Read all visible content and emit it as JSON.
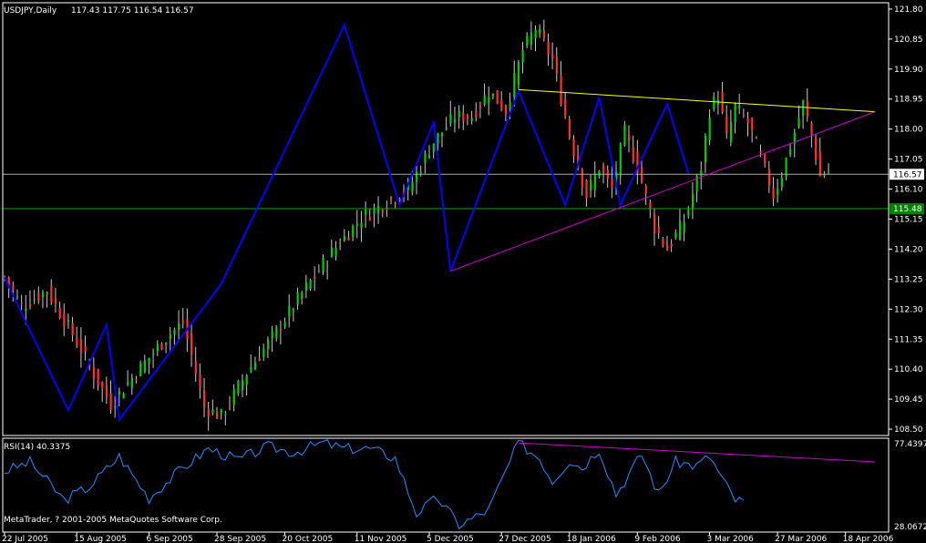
{
  "chart_data": {
    "type": "candlestick",
    "colors": {
      "background": "#000000",
      "frame": "#ffffff",
      "bull": "#00cc00",
      "bear": "#ff3030",
      "zigzag": "#0000ff",
      "trend_upper": "#ffff00",
      "trend_lower": "#cc00cc",
      "rsi_line": "#1e90ff",
      "rsi_trend": "#cc00cc",
      "bid_line": "#aaaaaa",
      "level_line": "#00aa00",
      "level_tag": "#008000"
    },
    "main": {
      "symbol_label": "USDJPY,Daily",
      "ohlc_label": "117.43 117.75 116.54 116.57",
      "ylim": [
        108.3,
        122.0
      ],
      "y_ticks": [
        "121.80",
        "120.85",
        "119.90",
        "118.95",
        "118.00",
        "117.05",
        "116.10",
        "115.15",
        "114.20",
        "113.25",
        "112.30",
        "111.35",
        "110.40",
        "109.45",
        "108.50"
      ],
      "bid_price": 116.57,
      "bid_label": "116.57",
      "level_price": 115.48,
      "level_label": "115.48",
      "copyright": "MetaTrader, ? 2001-2005 MetaQuotes Software Corp.",
      "bars": 195,
      "anchors": [
        [
          0,
          113.3
        ],
        [
          4,
          112.4
        ],
        [
          10,
          112.9
        ],
        [
          16,
          111.5
        ],
        [
          22,
          110.0
        ],
        [
          25,
          109.3
        ],
        [
          31,
          110.3
        ],
        [
          38,
          111.4
        ],
        [
          42,
          111.9
        ],
        [
          47,
          109.2
        ],
        [
          51,
          108.9
        ],
        [
          57,
          110.3
        ],
        [
          63,
          111.4
        ],
        [
          70,
          112.8
        ],
        [
          77,
          114.1
        ],
        [
          84,
          115.2
        ],
        [
          89,
          115.6
        ],
        [
          95,
          116.1
        ],
        [
          101,
          117.6
        ],
        [
          106,
          118.4
        ],
        [
          110,
          118.4
        ],
        [
          114,
          119.2
        ],
        [
          118,
          118.6
        ],
        [
          122,
          120.5
        ],
        [
          125,
          121.2
        ],
        [
          129,
          120.2
        ],
        [
          133,
          117.8
        ],
        [
          137,
          115.9
        ],
        [
          140,
          116.8
        ],
        [
          143,
          116.1
        ],
        [
          146,
          117.9
        ],
        [
          149,
          116.8
        ],
        [
          153,
          114.9
        ],
        [
          156,
          114.2
        ],
        [
          160,
          115.1
        ],
        [
          164,
          116.8
        ],
        [
          166,
          118.6
        ],
        [
          168,
          119.1
        ],
        [
          170,
          117.7
        ],
        [
          172,
          118.7
        ],
        [
          175,
          118.2
        ],
        [
          178,
          117.1
        ],
        [
          181,
          115.9
        ],
        [
          183,
          116.6
        ],
        [
          186,
          117.9
        ],
        [
          188,
          118.8
        ],
        [
          190,
          117.8
        ],
        [
          192,
          116.5
        ],
        [
          194,
          116.7
        ]
      ]
    },
    "x_labels": [
      {
        "bar": 0,
        "text": "22 Jul 2005"
      },
      {
        "bar": 17,
        "text": "15 Aug 2005"
      },
      {
        "bar": 34,
        "text": "6 Sep 2005"
      },
      {
        "bar": 50,
        "text": "28 Sep 2005"
      },
      {
        "bar": 66,
        "text": "20 Oct 2005"
      },
      {
        "bar": 83,
        "text": "11 Nov 2005"
      },
      {
        "bar": 100,
        "text": "5 Dec 2005"
      },
      {
        "bar": 117,
        "text": "27 Dec 2005"
      },
      {
        "bar": 133,
        "text": "18 Jan 2006"
      },
      {
        "bar": 149,
        "text": "9 Feb 2006"
      },
      {
        "bar": 166,
        "text": "3 Mar 2006"
      },
      {
        "bar": 182,
        "text": "27 Mar 2006"
      },
      {
        "bar": 198,
        "text": "18 Apr 2006"
      }
    ],
    "zigzag": [
      [
        0,
        113.3
      ],
      [
        15,
        109.1
      ],
      [
        24,
        111.8
      ],
      [
        27,
        108.8
      ],
      [
        51,
        113.1
      ],
      [
        80,
        121.3
      ],
      [
        93,
        115.6
      ],
      [
        101,
        118.2
      ],
      [
        105,
        113.5
      ],
      [
        121,
        119.2
      ],
      [
        132,
        115.6
      ],
      [
        140,
        119.0
      ],
      [
        145,
        115.6
      ],
      [
        156,
        118.8
      ],
      [
        161,
        116.6
      ]
    ],
    "trend_upper": [
      [
        121,
        119.25
      ],
      [
        205,
        118.55
      ]
    ],
    "trend_lower": [
      [
        105,
        113.5
      ],
      [
        205,
        118.55
      ]
    ],
    "rsi": {
      "label": "RSI(14) 40.3375",
      "ylim": [
        28.0672,
        77.4397
      ],
      "top_label": "77.4397",
      "bottom_label": "28.0672",
      "trend": [
        [
          121,
          75.0
        ],
        [
          205,
          65.0
        ]
      ],
      "anchors": [
        [
          0,
          60
        ],
        [
          6,
          65
        ],
        [
          14,
          45
        ],
        [
          20,
          52
        ],
        [
          27,
          68
        ],
        [
          34,
          46
        ],
        [
          41,
          60
        ],
        [
          48,
          72
        ],
        [
          55,
          66
        ],
        [
          62,
          73
        ],
        [
          68,
          70
        ],
        [
          75,
          75
        ],
        [
          80,
          72
        ],
        [
          86,
          72
        ],
        [
          92,
          67
        ],
        [
          97,
          38
        ],
        [
          102,
          46
        ],
        [
          107,
          32
        ],
        [
          110,
          35
        ],
        [
          114,
          40
        ],
        [
          118,
          60
        ],
        [
          121,
          75
        ],
        [
          126,
          67
        ],
        [
          129,
          55
        ],
        [
          133,
          66
        ],
        [
          136,
          62
        ],
        [
          140,
          72
        ],
        [
          144,
          48
        ],
        [
          150,
          69
        ],
        [
          154,
          48
        ],
        [
          158,
          65
        ],
        [
          163,
          63
        ],
        [
          166,
          68
        ],
        [
          169,
          56
        ],
        [
          172,
          45
        ],
        [
          174,
          44
        ]
      ]
    }
  }
}
